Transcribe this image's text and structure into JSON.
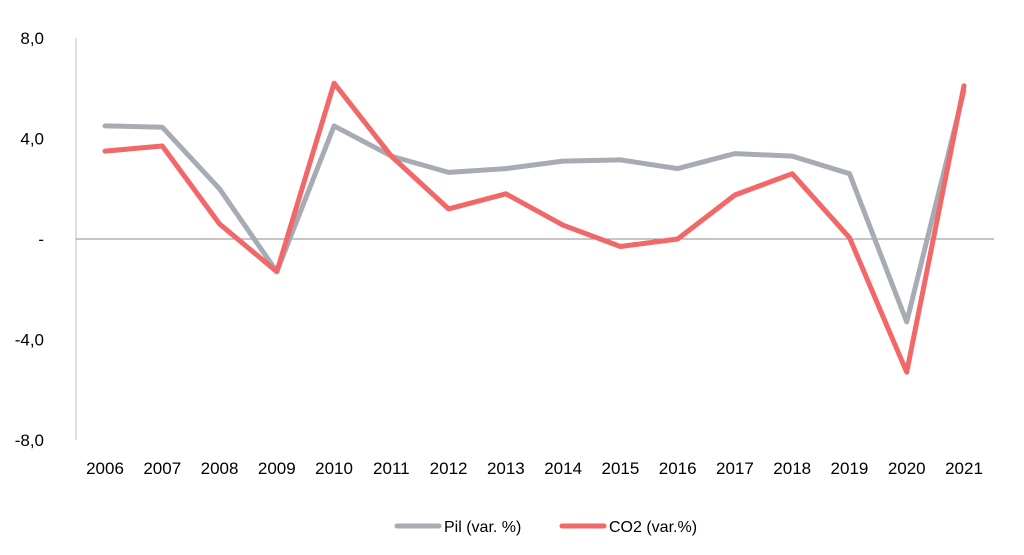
{
  "chart_data": {
    "type": "line",
    "title": "",
    "xlabel": "",
    "ylabel": "",
    "categories": [
      "2006",
      "2007",
      "2008",
      "2009",
      "2010",
      "2011",
      "2012",
      "2013",
      "2014",
      "2015",
      "2016",
      "2017",
      "2018",
      "2019",
      "2020",
      "2021"
    ],
    "ylim": [
      -8,
      8
    ],
    "yticks": [
      {
        "value": 8,
        "label": "8,0"
      },
      {
        "value": 4,
        "label": "4,0"
      },
      {
        "value": 0,
        "label": "-"
      },
      {
        "value": -4,
        "label": "-4,0"
      },
      {
        "value": -8,
        "label": "-8,0"
      }
    ],
    "grid": false,
    "legend_position": "bottom",
    "series": [
      {
        "name": "Pil (var. %)",
        "color": "#a7abb3",
        "values": [
          4.5,
          4.45,
          2.0,
          -1.3,
          4.5,
          3.3,
          2.65,
          2.8,
          3.1,
          3.15,
          2.8,
          3.4,
          3.3,
          2.6,
          -3.3,
          5.9
        ]
      },
      {
        "name": "CO2 (var.%)",
        "color": "#f26768",
        "values": [
          3.5,
          3.7,
          0.6,
          -1.3,
          6.2,
          3.3,
          1.2,
          1.8,
          0.55,
          -0.3,
          0.0,
          1.75,
          2.6,
          0.05,
          -5.3,
          6.1
        ]
      }
    ]
  }
}
